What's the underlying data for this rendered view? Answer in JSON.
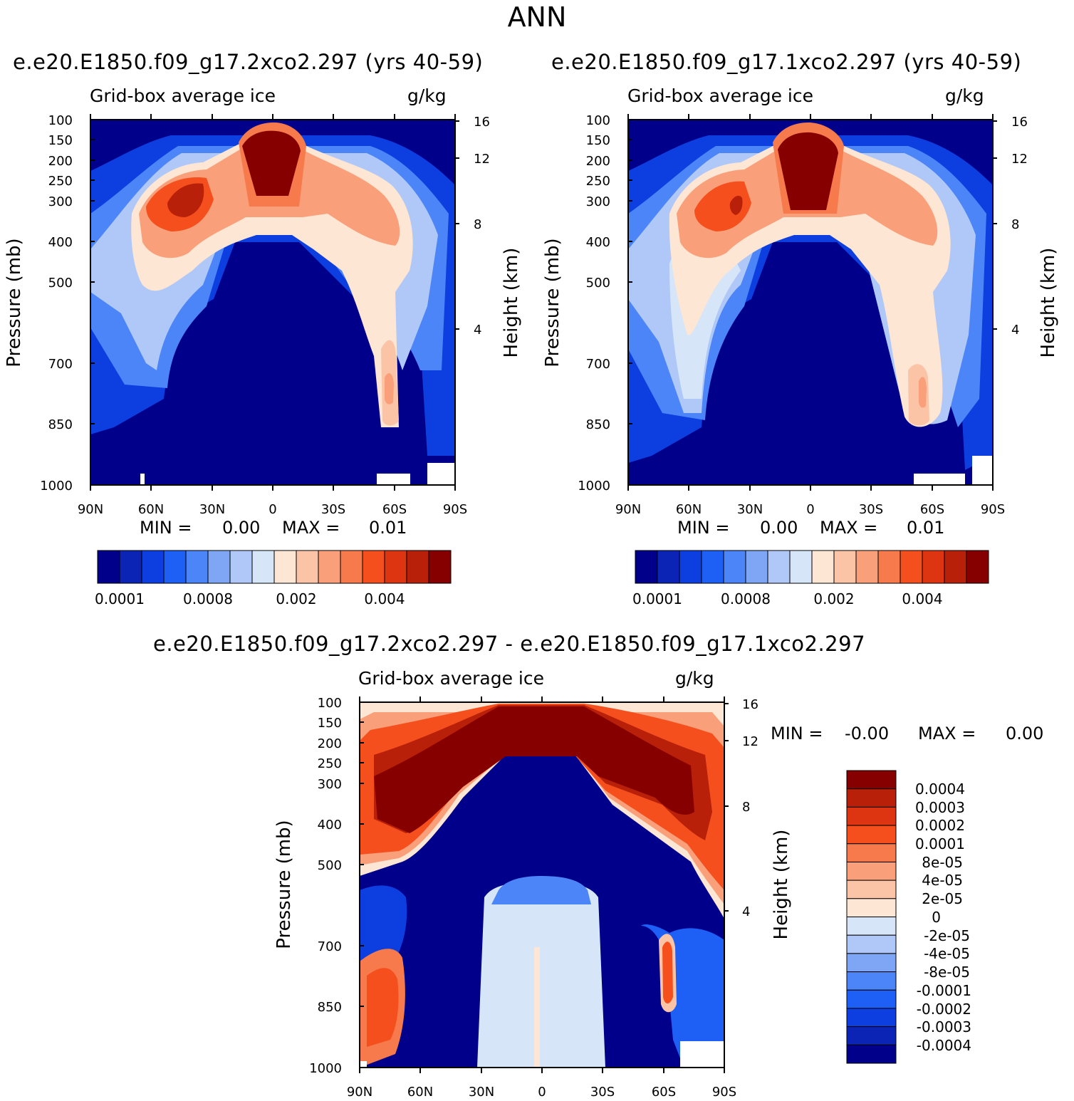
{
  "figure": {
    "main_title": "ANN"
  },
  "chart_data": [
    {
      "type": "heatmap",
      "title": "e.e20.E1850.f09_g17.2xco2.297 (yrs 40-59)",
      "field": "Grid-box average ice",
      "units": "g/kg",
      "ylabel": "Pressure (mb)",
      "ylabel_right": "Height (km)",
      "xticks": [
        "90N",
        "60N",
        "30N",
        "0",
        "30S",
        "60S",
        "90S"
      ],
      "yticks": [
        "100",
        "150",
        "200",
        "250",
        "300",
        "400",
        "500",
        "700",
        "850",
        "1000"
      ],
      "height_ticks": [
        "16",
        "12",
        "8",
        "4"
      ],
      "min_label": "MIN =",
      "min_value": "0.00",
      "max_label": "MAX =",
      "max_value": "0.01",
      "colorbar_labels": [
        "0.0001",
        "0.0008",
        "0.002",
        "0.004"
      ],
      "colors": [
        "#00008b",
        "#0b24b5",
        "#0d3ee0",
        "#1e5ff5",
        "#4b85f7",
        "#7fa6f5",
        "#b0c8f7",
        "#d6e6f8",
        "#fde6d4",
        "#fcc4a6",
        "#f9a07b",
        "#f77a4c",
        "#f54f1e",
        "#dd3412",
        "#b8200a",
        "#860000"
      ]
    },
    {
      "type": "heatmap",
      "title": "e.e20.E1850.f09_g17.1xco2.297 (yrs 40-59)",
      "field": "Grid-box average ice",
      "units": "g/kg",
      "ylabel": "Pressure (mb)",
      "ylabel_right": "Height (km)",
      "xticks": [
        "90N",
        "60N",
        "30N",
        "0",
        "30S",
        "60S",
        "90S"
      ],
      "yticks": [
        "100",
        "150",
        "200",
        "250",
        "300",
        "400",
        "500",
        "700",
        "850",
        "1000"
      ],
      "height_ticks": [
        "16",
        "12",
        "8",
        "4"
      ],
      "min_label": "MIN =",
      "min_value": "0.00",
      "max_label": "MAX =",
      "max_value": "0.01",
      "colorbar_labels": [
        "0.0001",
        "0.0008",
        "0.002",
        "0.004"
      ],
      "colors": [
        "#00008b",
        "#0b24b5",
        "#0d3ee0",
        "#1e5ff5",
        "#4b85f7",
        "#7fa6f5",
        "#b0c8f7",
        "#d6e6f8",
        "#fde6d4",
        "#fcc4a6",
        "#f9a07b",
        "#f77a4c",
        "#f54f1e",
        "#dd3412",
        "#b8200a",
        "#860000"
      ]
    },
    {
      "type": "heatmap",
      "title": "e.e20.E1850.f09_g17.2xco2.297 - e.e20.E1850.f09_g17.1xco2.297",
      "field": "Grid-box average ice",
      "units": "g/kg",
      "ylabel": "Pressure (mb)",
      "ylabel_right": "Height (km)",
      "xticks": [
        "90N",
        "60N",
        "30N",
        "0",
        "30S",
        "60S",
        "90S"
      ],
      "yticks": [
        "100",
        "150",
        "200",
        "250",
        "300",
        "400",
        "500",
        "700",
        "850",
        "1000"
      ],
      "height_ticks": [
        "16",
        "12",
        "8",
        "4"
      ],
      "min_label": "MIN =",
      "min_value": "-0.00",
      "max_label": "MAX =",
      "max_value": "0.00",
      "colorbar_labels": [
        "0.0004",
        "0.0003",
        "0.0002",
        "0.0001",
        "8e-05",
        "4e-05",
        "2e-05",
        "0",
        "-2e-05",
        "-4e-05",
        "-8e-05",
        "-0.0001",
        "-0.0002",
        "-0.0003",
        "-0.0004"
      ],
      "colors": [
        "#860000",
        "#b8200a",
        "#dd3412",
        "#f54f1e",
        "#f77a4c",
        "#f9a07b",
        "#fcc4a6",
        "#fde6d4",
        "#d6e6f8",
        "#b0c8f7",
        "#7fa6f5",
        "#4b85f7",
        "#1e5ff5",
        "#0d3ee0",
        "#0b24b5",
        "#00008b"
      ]
    }
  ]
}
